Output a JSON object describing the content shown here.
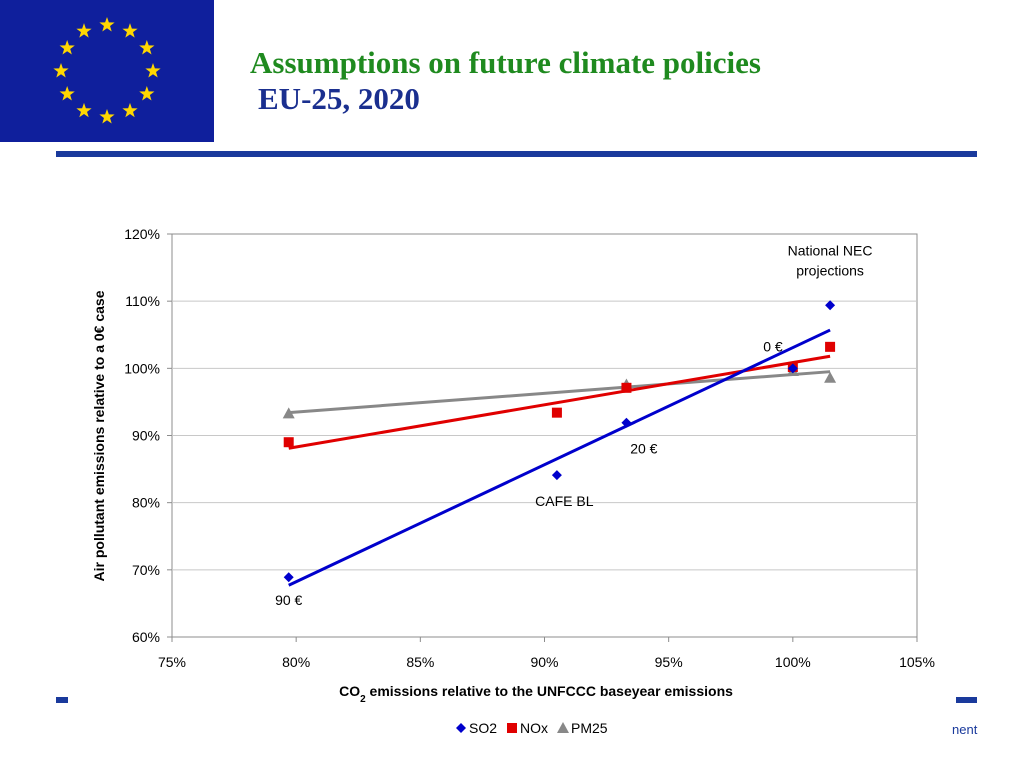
{
  "header": {
    "title_line1": "Assumptions on future climate policies",
    "title_line2": "EU-25, 2020"
  },
  "footer": {
    "fragment": "nent"
  },
  "colors": {
    "flag_blue": "#0f1f9c",
    "flag_star": "#ffd700",
    "title_green": "#1f8a1f",
    "title_blue": "#1a2f8f",
    "rule_blue": "#1a3a9c",
    "so2": "#0000cc",
    "nox": "#e00000",
    "pm25": "#888888"
  },
  "chart_data": {
    "type": "scatter",
    "xlabel_main": "CO",
    "xlabel_sub": "2",
    "xlabel_rest": " emissions relative to the UNFCCC baseyear emissions",
    "ylabel": "Air pollutant emissions relative to a 0€ case",
    "xlim": [
      75,
      105
    ],
    "ylim": [
      60,
      120
    ],
    "x_ticks": [
      75,
      80,
      85,
      90,
      95,
      100,
      105
    ],
    "x_tick_labels": [
      "75%",
      "80%",
      "85%",
      "90%",
      "95%",
      "100%",
      "105%"
    ],
    "y_ticks": [
      60,
      70,
      80,
      90,
      100,
      110,
      120
    ],
    "y_tick_labels": [
      "60%",
      "70%",
      "80%",
      "90%",
      "100%",
      "110%",
      "120%"
    ],
    "grid": "horizontal",
    "legend_position": "bottom",
    "series": [
      {
        "name": "SO2",
        "marker": "diamond",
        "color": "#0000cc",
        "points": [
          [
            79.7,
            68.9
          ],
          [
            90.5,
            84.1
          ],
          [
            93.3,
            91.9
          ],
          [
            100.0,
            100.0
          ],
          [
            101.5,
            109.4
          ]
        ],
        "trendline": [
          [
            79.7,
            67.7
          ],
          [
            101.5,
            105.7
          ]
        ]
      },
      {
        "name": "NOx",
        "marker": "square",
        "color": "#e00000",
        "points": [
          [
            79.7,
            89.0
          ],
          [
            90.5,
            93.4
          ],
          [
            93.3,
            97.1
          ],
          [
            100.0,
            100.2
          ],
          [
            101.5,
            103.2
          ]
        ],
        "trendline": [
          [
            79.7,
            88.1
          ],
          [
            101.5,
            101.8
          ]
        ]
      },
      {
        "name": "PM25",
        "marker": "triangle",
        "color": "#888888",
        "points": [
          [
            79.7,
            93.3
          ],
          [
            93.3,
            97.6
          ],
          [
            100.0,
            99.6
          ],
          [
            101.5,
            98.6
          ]
        ],
        "trendline": [
          [
            79.7,
            93.4
          ],
          [
            101.5,
            99.5
          ]
        ]
      }
    ],
    "annotations": [
      {
        "id": "anno-90eur",
        "lines": [
          "90 €"
        ],
        "x": 79.7,
        "y": 64.8,
        "anchor": "middle"
      },
      {
        "id": "anno-cafe",
        "lines": [
          "CAFE BL"
        ],
        "x": 90.8,
        "y": 79.5,
        "anchor": "middle"
      },
      {
        "id": "anno-20eur",
        "lines": [
          "20 €"
        ],
        "x": 94.0,
        "y": 87.3,
        "anchor": "middle"
      },
      {
        "id": "anno-0eur",
        "lines": [
          "0 €"
        ],
        "x": 99.2,
        "y": 102.5,
        "anchor": "middle"
      },
      {
        "id": "anno-nec",
        "lines": [
          "National NEC",
          "projections"
        ],
        "x": 101.5,
        "y": 116.8,
        "anchor": "middle"
      }
    ]
  }
}
